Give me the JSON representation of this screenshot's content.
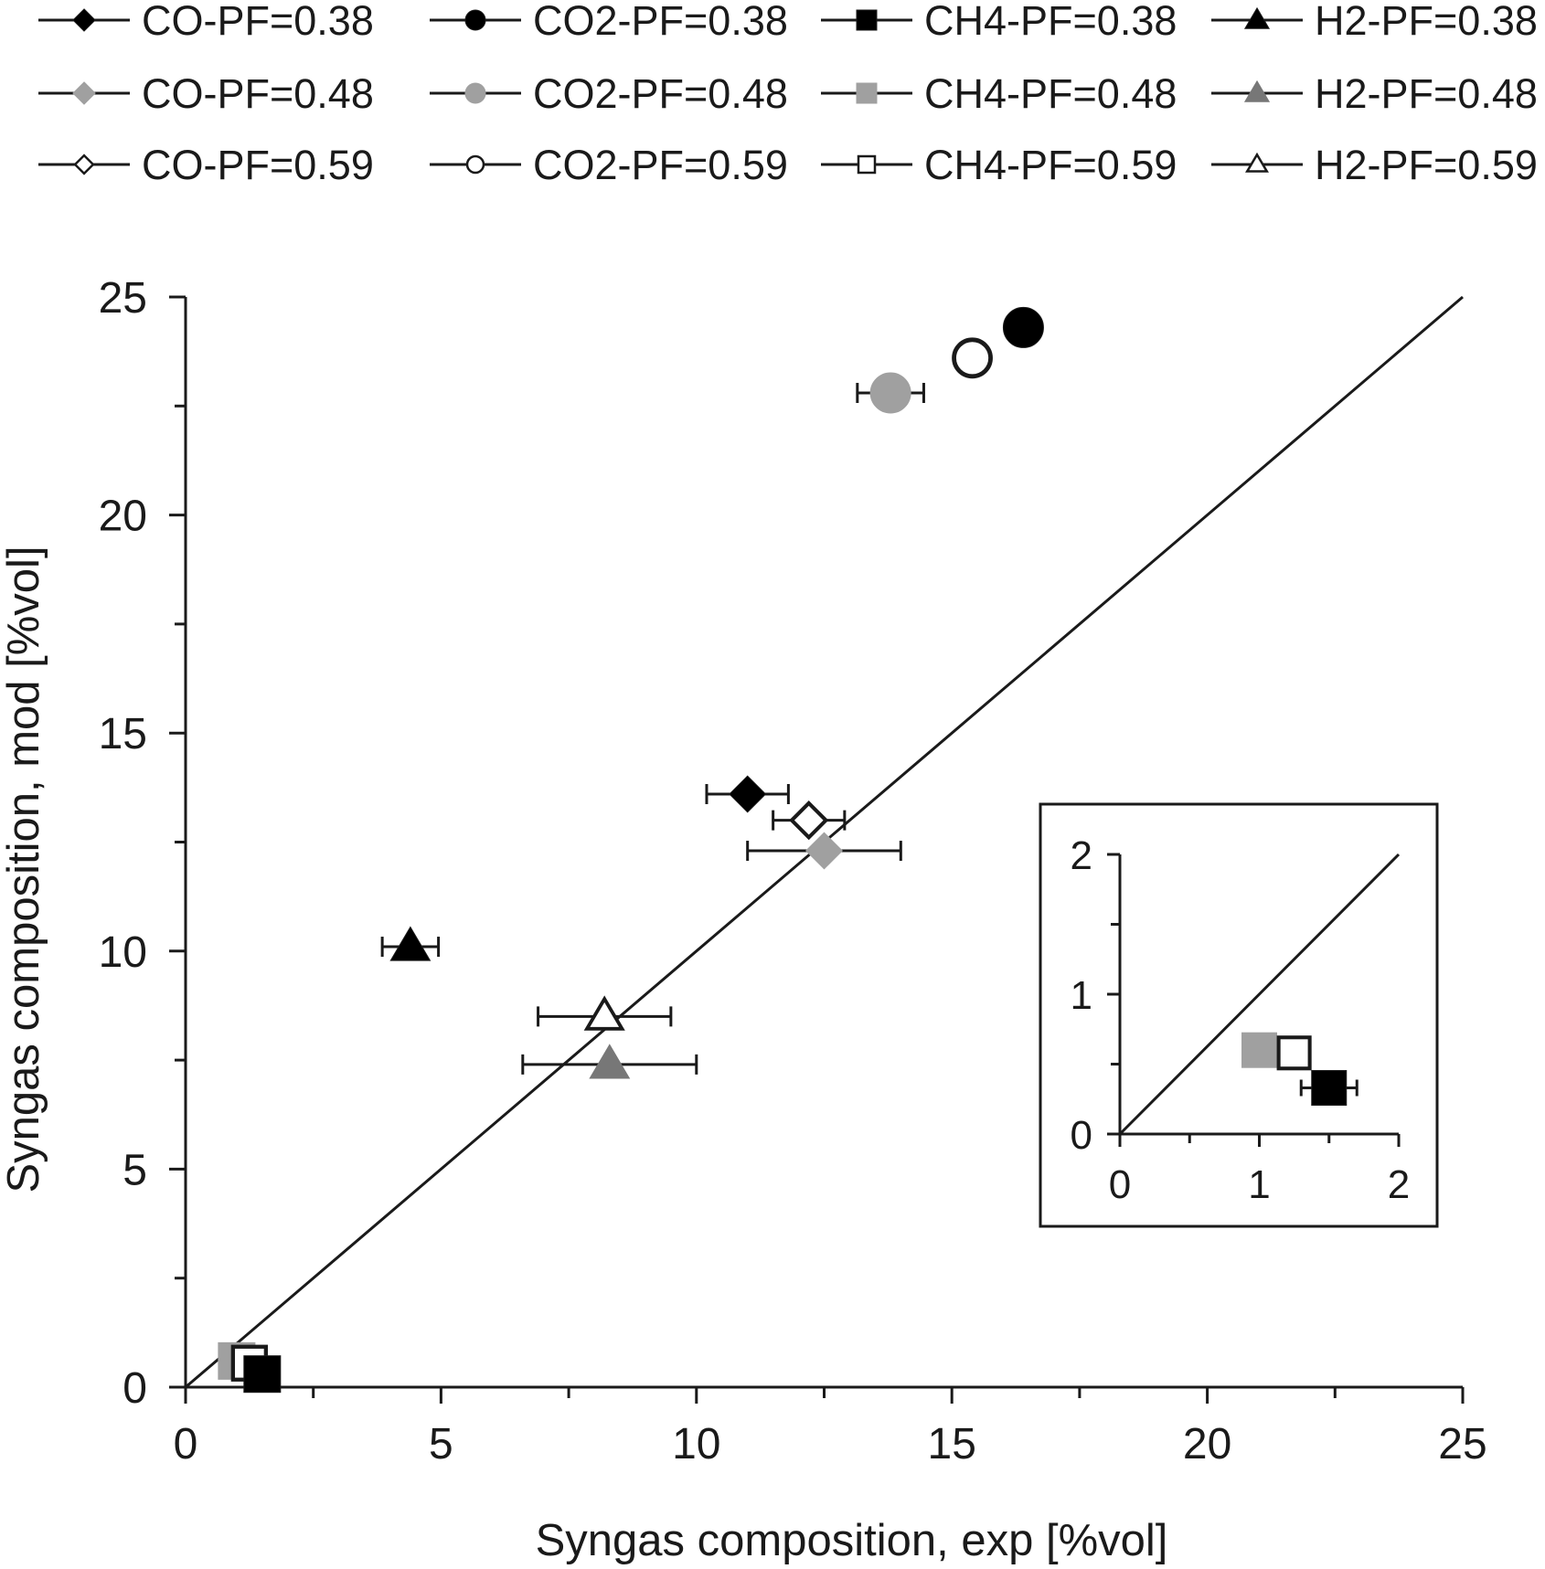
{
  "chart_data": {
    "type": "scatter",
    "title": "",
    "xlabel": "Syngas composition, exp [%vol]",
    "ylabel": "Syngas composition, mod [%vol]",
    "xlim": [
      0,
      25
    ],
    "ylim": [
      0,
      25
    ],
    "xticks": [
      "0",
      "5",
      "10",
      "15",
      "20",
      "25"
    ],
    "yticks": [
      "0",
      "5",
      "10",
      "15",
      "20",
      "25"
    ],
    "reference_line": {
      "label": "y = x",
      "from": [
        0,
        0
      ],
      "to": [
        25,
        25
      ]
    },
    "legend_position": "top",
    "series": [
      {
        "name": "CO-PF=0.38",
        "marker": "diamond",
        "fill": "#000000",
        "points": [
          {
            "x": 11.0,
            "y": 13.6,
            "xerr": 0.8
          }
        ]
      },
      {
        "name": "CO2-PF=0.38",
        "marker": "circle",
        "fill": "#000000",
        "points": [
          {
            "x": 16.4,
            "y": 24.3
          }
        ]
      },
      {
        "name": "CH4-PF=0.38",
        "marker": "square",
        "fill": "#000000",
        "points": [
          {
            "x": 1.5,
            "y": 0.3
          }
        ]
      },
      {
        "name": "H2-PF=0.38",
        "marker": "triangle",
        "fill": "#000000",
        "points": [
          {
            "x": 4.4,
            "y": 10.1,
            "xerr": 0.55
          }
        ]
      },
      {
        "name": "CO-PF=0.48",
        "marker": "diamond",
        "fill": "#a0a0a0",
        "points": [
          {
            "x": 12.5,
            "y": 12.3,
            "xerr": 1.5
          }
        ]
      },
      {
        "name": "CO2-PF=0.48",
        "marker": "circle",
        "fill": "#a0a0a0",
        "points": [
          {
            "x": 13.8,
            "y": 22.8,
            "xerr": 0.65
          }
        ]
      },
      {
        "name": "CH4-PF=0.48",
        "marker": "square",
        "fill": "#a0a0a0",
        "points": [
          {
            "x": 1.0,
            "y": 0.6
          }
        ]
      },
      {
        "name": "H2-PF=0.48",
        "marker": "triangle",
        "fill": "#777777",
        "points": [
          {
            "x": 8.3,
            "y": 7.4,
            "xerr": 1.7
          }
        ]
      },
      {
        "name": "CO-PF=0.59",
        "marker": "diamond",
        "fill": "none",
        "points": [
          {
            "x": 12.2,
            "y": 13.0,
            "xerr": 0.7
          }
        ]
      },
      {
        "name": "CO2-PF=0.59",
        "marker": "circle",
        "fill": "none",
        "points": [
          {
            "x": 15.4,
            "y": 23.6,
            "xerr": 0.25
          }
        ]
      },
      {
        "name": "CH4-PF=0.59",
        "marker": "square",
        "fill": "none",
        "points": [
          {
            "x": 1.25,
            "y": 0.55
          }
        ]
      },
      {
        "name": "H2-PF=0.59",
        "marker": "triangle",
        "fill": "none",
        "points": [
          {
            "x": 8.2,
            "y": 8.5,
            "xerr": 1.3
          }
        ]
      }
    ],
    "inset": {
      "position": "lower-right",
      "xlim": [
        0,
        2
      ],
      "ylim": [
        0,
        2
      ],
      "xticks": [
        "0",
        "1",
        "2"
      ],
      "yticks": [
        "0",
        "1",
        "2"
      ],
      "reference_line": {
        "from": [
          0,
          0
        ],
        "to": [
          2,
          2
        ]
      },
      "points": [
        {
          "series": "CH4-PF=0.48",
          "marker": "square",
          "fill": "#a0a0a0",
          "x": 1.0,
          "y": 0.6
        },
        {
          "series": "CH4-PF=0.59",
          "marker": "square",
          "fill": "none",
          "x": 1.25,
          "y": 0.58,
          "xerr": 0.05
        },
        {
          "series": "CH4-PF=0.38",
          "marker": "square",
          "fill": "#000000",
          "x": 1.5,
          "y": 0.33,
          "xerr": 0.2
        }
      ]
    }
  }
}
